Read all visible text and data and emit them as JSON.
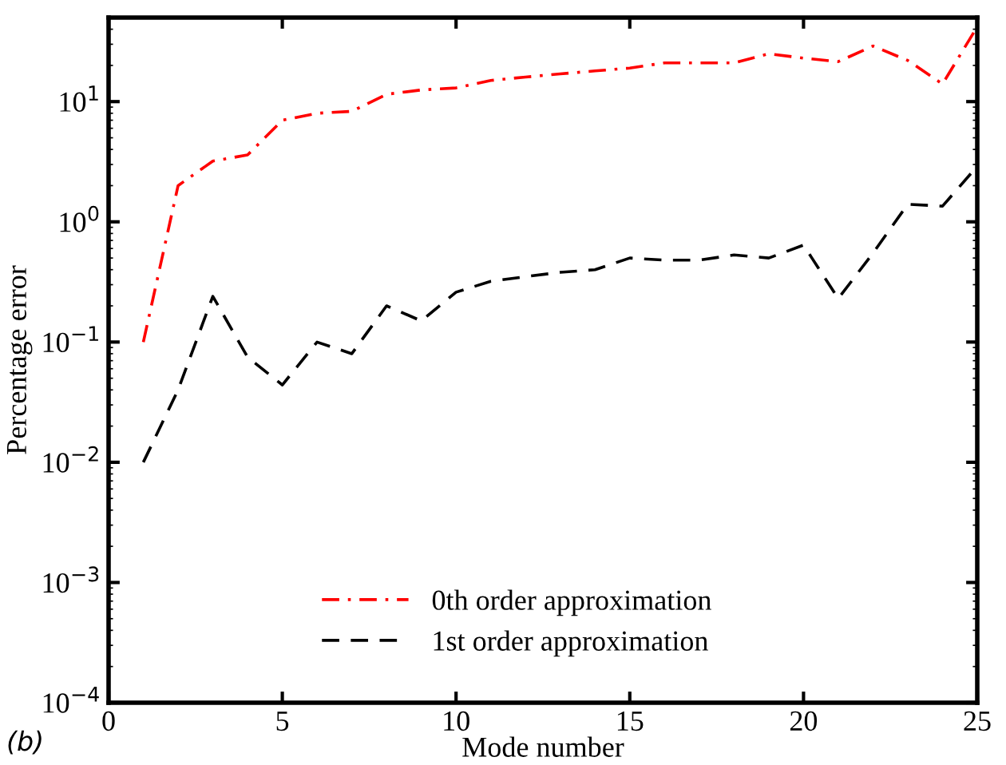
{
  "chart_data": {
    "type": "line",
    "xlabel": "Mode number",
    "ylabel": "Percentage error",
    "log": "y",
    "x": [
      1,
      2,
      3,
      4,
      5,
      6,
      7,
      8,
      9,
      10,
      11,
      12,
      13,
      14,
      15,
      16,
      17,
      18,
      19,
      20,
      21,
      22,
      23,
      24,
      25
    ],
    "series": [
      {
        "name": "0th order approximation",
        "color": "#ff0000",
        "line_style": "dashdot",
        "values": [
          0.1,
          2.0,
          3.2,
          3.6,
          7,
          8,
          8.3,
          11.5,
          12.5,
          13,
          15,
          16,
          17,
          18,
          19,
          21,
          21,
          21,
          25,
          23,
          21.5,
          29,
          22,
          14,
          42
        ]
      },
      {
        "name": "1st order approximation",
        "color": "#000000",
        "line_style": "dashed",
        "values": [
          0.01,
          0.04,
          0.24,
          0.075,
          0.044,
          0.1,
          0.08,
          0.2,
          0.15,
          0.26,
          0.32,
          0.35,
          0.38,
          0.4,
          0.5,
          0.48,
          0.48,
          0.53,
          0.5,
          0.64,
          0.23,
          0.55,
          1.4,
          1.35,
          2.9
        ]
      }
    ],
    "xlim": [
      0,
      25
    ],
    "xticks": [
      0,
      5,
      10,
      15,
      20,
      25
    ],
    "ylim": [
      0.0001,
      50
    ],
    "yticks": [
      {
        "value": 0.0001,
        "label": "10$^{−4}$"
      },
      {
        "value": 0.001,
        "label": "10$^{−3}$"
      },
      {
        "value": 0.01,
        "label": "10$^{−2}$"
      },
      {
        "value": 0.1,
        "label": "10$^{−1}$"
      },
      {
        "value": 1,
        "label": "10$^{0}$"
      },
      {
        "value": 10,
        "label": "10$^{1}$"
      }
    ],
    "grid": false,
    "legend": "bottom",
    "marker": "none",
    "annotations": [
      "(b)"
    ]
  }
}
